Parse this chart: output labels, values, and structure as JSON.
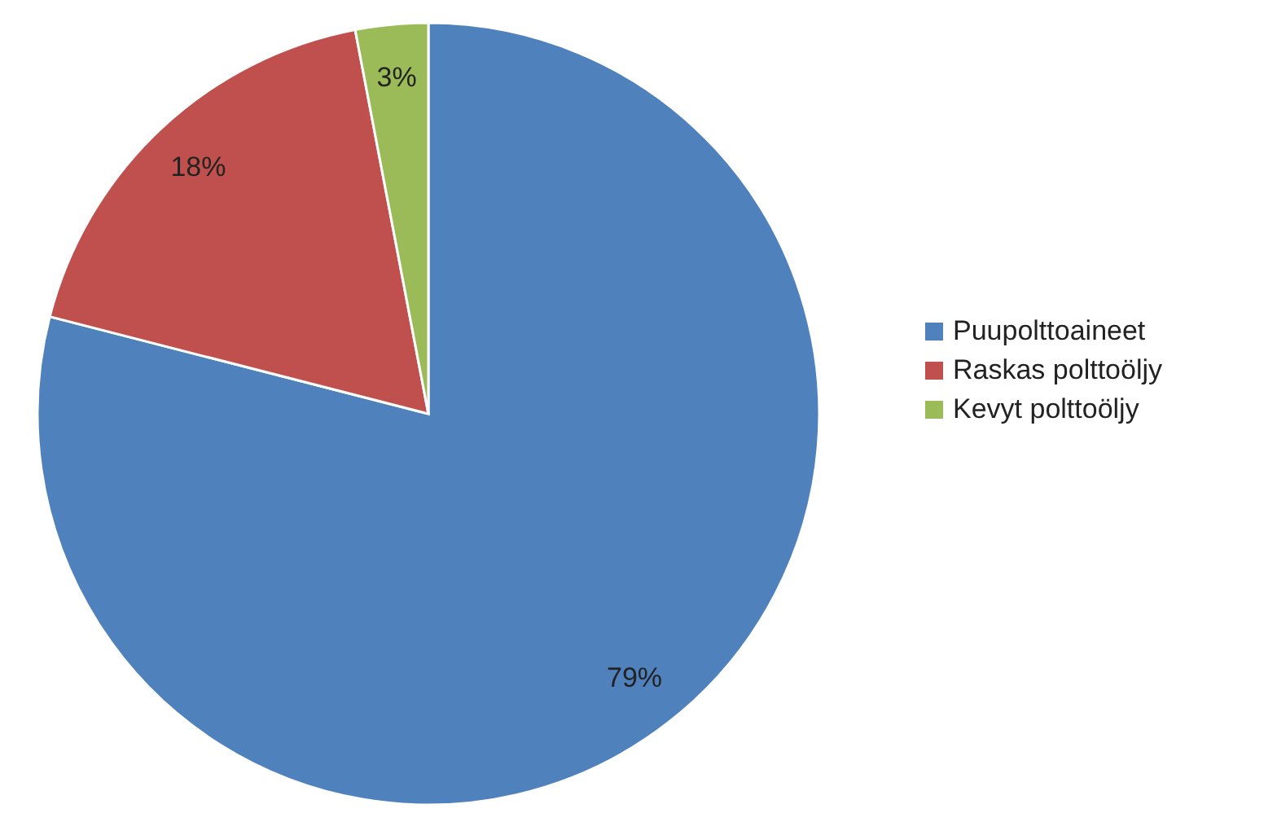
{
  "chart_data": {
    "type": "pie",
    "categories": [
      "Puupolttoaineet",
      "Raskas polttoöljy",
      "Kevyt polttoöljy"
    ],
    "values": [
      79,
      18,
      3
    ],
    "colors": [
      "#4f81bd",
      "#c0504d",
      "#9bbb59"
    ],
    "value_labels": [
      "79%",
      "18%",
      "3%"
    ],
    "legend": "right"
  }
}
